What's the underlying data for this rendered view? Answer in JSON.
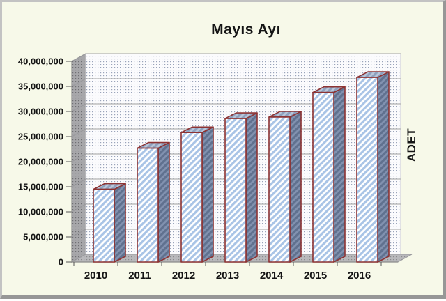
{
  "panel": {
    "background": "#f7f9e9"
  },
  "chart_data": {
    "type": "bar",
    "variant": "3d-column",
    "title": "Mayıs Ayı",
    "ylabel_right": "ADET",
    "xlabel": "",
    "categories": [
      "2010",
      "2011",
      "2012",
      "2013",
      "2014",
      "2015",
      "2016"
    ],
    "values": [
      14500000,
      22700000,
      25800000,
      28600000,
      28900000,
      33800000,
      36800000
    ],
    "y_ticks": [
      0,
      5000000,
      10000000,
      15000000,
      20000000,
      25000000,
      30000000,
      35000000,
      40000000
    ],
    "y_tick_labels": [
      "0",
      "5,000,000",
      "10,000,000",
      "15,000,000",
      "20,000,000",
      "25,000,000",
      "30,000,000",
      "35,000,000",
      "40,000,000"
    ],
    "ylim": [
      0,
      40000000
    ],
    "grid": true,
    "legend": "none",
    "colors": {
      "bar_front_stripe_light": "#ffffff",
      "bar_front_stripe_blue": "#a9c4e6",
      "bar_side_dark": "#60718f",
      "bar_side_light": "#8292b0",
      "bar_top_dark": "#8da1bf",
      "bar_top_light": "#bac7da",
      "bar_border_maroon": "#8d3333",
      "wall_dot": "#99a3b9",
      "side_wall_gray": "#a7a7aa",
      "gridline": "#b3b3b3",
      "background_cream": "#f7f9e9"
    }
  }
}
